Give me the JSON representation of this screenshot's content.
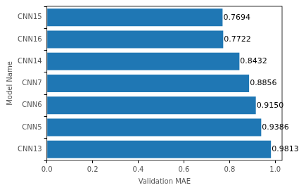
{
  "chart_data": {
    "type": "bar",
    "orientation": "horizontal",
    "categories": [
      "CNN15",
      "CNN16",
      "CNN14",
      "CNN7",
      "CNN6",
      "CNN5",
      "CNN13"
    ],
    "values": [
      0.7694,
      0.7722,
      0.8432,
      0.8856,
      0.915,
      0.9386,
      0.9813
    ],
    "value_labels": [
      "0.7694",
      "0.7722",
      "0.8432",
      "0.8856",
      "0.9150",
      "0.9386",
      "0.9813"
    ],
    "data_labels": true,
    "color": "#1f77b4",
    "x_label": "Validation MAE",
    "y_label": "Model Name",
    "xlim": [
      0,
      1.03
    ],
    "xticks": [
      {
        "value": 0,
        "label": "0.0"
      },
      {
        "value": 0.2,
        "label": "0.2"
      },
      {
        "value": 0.4,
        "label": "0.4"
      },
      {
        "value": 0.6,
        "label": "0.6"
      },
      {
        "value": 0.8,
        "label": "0.8"
      },
      {
        "value": 1,
        "label": "1.0"
      }
    ],
    "grid": false
  }
}
